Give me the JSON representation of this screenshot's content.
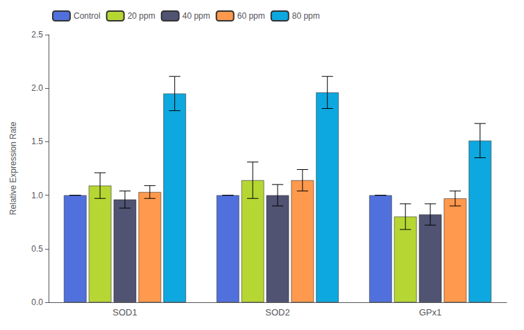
{
  "chart_data": {
    "type": "bar",
    "categories": [
      "SOD1",
      "SOD2",
      "GPx1"
    ],
    "series": [
      {
        "name": "Control",
        "values": [
          1.0,
          1.0,
          1.0
        ],
        "errors": [
          0.0,
          0.0,
          0.0
        ]
      },
      {
        "name": "20 ppm",
        "values": [
          1.09,
          1.14,
          0.8
        ],
        "errors": [
          0.12,
          0.17,
          0.12
        ]
      },
      {
        "name": "40 ppm",
        "values": [
          0.96,
          1.0,
          0.82
        ],
        "errors": [
          0.08,
          0.1,
          0.1
        ]
      },
      {
        "name": "60 ppm",
        "values": [
          1.03,
          1.14,
          0.97
        ],
        "errors": [
          0.06,
          0.1,
          0.07
        ]
      },
      {
        "name": "80 ppm",
        "values": [
          1.95,
          1.96,
          1.51
        ],
        "errors": [
          0.16,
          0.15,
          0.16
        ]
      }
    ],
    "ylabel": "Relative Expression Rate",
    "ylim": [
      0.0,
      2.5
    ],
    "yticks": [
      {
        "value": 0,
        "label": "0.0"
      },
      0.5,
      {
        "value": 1,
        "label": "1.0"
      },
      1.5,
      {
        "value": 2,
        "label": "2.0"
      },
      2.5
    ],
    "grid": false,
    "legend": "upper left"
  }
}
